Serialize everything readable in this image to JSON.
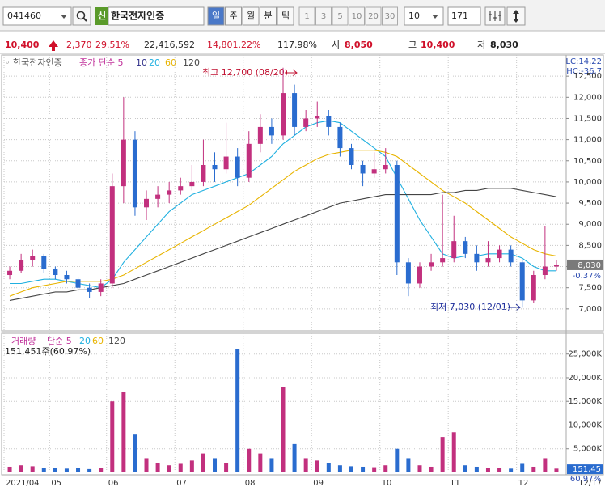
{
  "toolbar": {
    "code": "041460",
    "badge": "신",
    "name": "한국전자인증",
    "periods": [
      "일",
      "주",
      "월",
      "분",
      "틱"
    ],
    "minutes": [
      "1",
      "3",
      "5",
      "10",
      "20",
      "30"
    ],
    "count_select": "10",
    "bars": "171"
  },
  "quote": {
    "price": "10,400",
    "change": "2,370",
    "change_pct": "29.51%",
    "volume": "22,416,592",
    "volume_pct": "14,801.22%",
    "turnover_pct": "117.98%",
    "open_label": "시",
    "open": "8,050",
    "high_label": "고",
    "high": "10,400",
    "low_label": "저",
    "low": "8,030"
  },
  "chart_data": [
    {
      "type": "candlestick",
      "name": "한국전자인증",
      "legend": [
        "종가 단순 5",
        "10",
        "20",
        "60",
        "120"
      ],
      "legend_colors": [
        "#c0309a",
        "#30308a",
        "#20b0e0",
        "#e8b400",
        "#444444"
      ],
      "up_color": "#c2307e",
      "down_color": "#2a6ccf",
      "candles": [
        {
          "open": 7800,
          "high": 8000,
          "low": 7700,
          "close": 7900
        },
        {
          "open": 7900,
          "high": 8300,
          "low": 7850,
          "close": 8150
        },
        {
          "open": 8150,
          "high": 8400,
          "low": 8000,
          "close": 8250
        },
        {
          "open": 8250,
          "high": 8300,
          "low": 7850,
          "close": 7950
        },
        {
          "open": 7950,
          "high": 8000,
          "low": 7700,
          "close": 7800
        },
        {
          "open": 7800,
          "high": 7900,
          "low": 7600,
          "close": 7700
        },
        {
          "open": 7700,
          "high": 7750,
          "low": 7400,
          "close": 7500
        },
        {
          "open": 7500,
          "high": 7600,
          "low": 7250,
          "close": 7400
        },
        {
          "open": 7400,
          "high": 7700,
          "low": 7300,
          "close": 7600
        },
        {
          "open": 7600,
          "high": 10200,
          "low": 7500,
          "close": 9900
        },
        {
          "open": 9900,
          "high": 12000,
          "low": 9500,
          "close": 11000
        },
        {
          "open": 11000,
          "high": 11200,
          "low": 9200,
          "close": 9400
        },
        {
          "open": 9400,
          "high": 9800,
          "low": 9100,
          "close": 9600
        },
        {
          "open": 9600,
          "high": 9900,
          "low": 9400,
          "close": 9700
        },
        {
          "open": 9700,
          "high": 10000,
          "low": 9500,
          "close": 9800
        },
        {
          "open": 9800,
          "high": 10100,
          "low": 9700,
          "close": 9900
        },
        {
          "open": 9900,
          "high": 10400,
          "low": 9800,
          "close": 10000
        },
        {
          "open": 10000,
          "high": 11000,
          "low": 9900,
          "close": 10400
        },
        {
          "open": 10400,
          "high": 10700,
          "low": 10000,
          "close": 10300
        },
        {
          "open": 10300,
          "high": 11400,
          "low": 10200,
          "close": 10600
        },
        {
          "open": 10600,
          "high": 10800,
          "low": 9900,
          "close": 10100
        },
        {
          "open": 10100,
          "high": 11200,
          "low": 10000,
          "close": 10900
        },
        {
          "open": 10900,
          "high": 11600,
          "low": 10700,
          "close": 11300
        },
        {
          "open": 11300,
          "high": 11500,
          "low": 10900,
          "close": 11100
        },
        {
          "open": 11100,
          "high": 12700,
          "low": 11000,
          "close": 12100
        },
        {
          "open": 12100,
          "high": 12300,
          "low": 11100,
          "close": 11300
        },
        {
          "open": 11300,
          "high": 11700,
          "low": 11200,
          "close": 11500
        },
        {
          "open": 11500,
          "high": 11900,
          "low": 11300,
          "close": 11550
        },
        {
          "open": 11550,
          "high": 11700,
          "low": 11100,
          "close": 11300
        },
        {
          "open": 11300,
          "high": 11400,
          "low": 10600,
          "close": 10800
        },
        {
          "open": 10800,
          "high": 10900,
          "low": 10300,
          "close": 10400
        },
        {
          "open": 10400,
          "high": 10500,
          "low": 9900,
          "close": 10200
        },
        {
          "open": 10200,
          "high": 10700,
          "low": 10100,
          "close": 10300
        },
        {
          "open": 10300,
          "high": 10800,
          "low": 10200,
          "close": 10400
        },
        {
          "open": 10400,
          "high": 10500,
          "low": 7800,
          "close": 8100
        },
        {
          "open": 8100,
          "high": 8200,
          "low": 7300,
          "close": 7600
        },
        {
          "open": 7600,
          "high": 8100,
          "low": 7500,
          "close": 8000
        },
        {
          "open": 8000,
          "high": 8300,
          "low": 7900,
          "close": 8100
        },
        {
          "open": 8100,
          "high": 9700,
          "low": 8000,
          "close": 8200
        },
        {
          "open": 8200,
          "high": 9200,
          "low": 8100,
          "close": 8600
        },
        {
          "open": 8600,
          "high": 8700,
          "low": 8200,
          "close": 8300
        },
        {
          "open": 8300,
          "high": 8500,
          "low": 7900,
          "close": 8100
        },
        {
          "open": 8100,
          "high": 8600,
          "low": 8000,
          "close": 8200
        },
        {
          "open": 8200,
          "high": 8500,
          "low": 8100,
          "close": 8400
        },
        {
          "open": 8400,
          "high": 8500,
          "low": 8000,
          "close": 8100
        },
        {
          "open": 8100,
          "high": 8150,
          "low": 7030,
          "close": 7200
        },
        {
          "open": 7200,
          "high": 7900,
          "low": 7150,
          "close": 7800
        },
        {
          "open": 7800,
          "high": 8950,
          "low": 7700,
          "close": 8000
        },
        {
          "open": 8000,
          "high": 8150,
          "low": 7900,
          "close": 8030
        }
      ],
      "ma_lines": [
        {
          "color": "#20b0e0",
          "values": [
            7600,
            7600,
            7650,
            7700,
            7700,
            7650,
            7600,
            7550,
            7500,
            7700,
            8100,
            8400,
            8700,
            9000,
            9300,
            9500,
            9700,
            9800,
            9900,
            10000,
            10100,
            10200,
            10400,
            10600,
            10900,
            11100,
            11300,
            11400,
            11450,
            11400,
            11200,
            11000,
            10800,
            10600,
            10100,
            9600,
            9100,
            8700,
            8300,
            8200,
            8250,
            8250,
            8300,
            8300,
            8300,
            8200,
            8000,
            7900,
            7900
          ]
        },
        {
          "color": "#e8b400",
          "values": [
            7300,
            7400,
            7500,
            7550,
            7600,
            7650,
            7650,
            7650,
            7650,
            7700,
            7800,
            7950,
            8100,
            8250,
            8400,
            8550,
            8700,
            8850,
            9000,
            9150,
            9300,
            9450,
            9650,
            9850,
            10050,
            10250,
            10400,
            10550,
            10650,
            10700,
            10750,
            10750,
            10750,
            10700,
            10600,
            10400,
            10200,
            10000,
            9800,
            9650,
            9500,
            9300,
            9100,
            8900,
            8700,
            8550,
            8400,
            8300,
            8250
          ]
        },
        {
          "color": "#444444",
          "values": [
            7200,
            7250,
            7300,
            7350,
            7400,
            7400,
            7450,
            7450,
            7500,
            7550,
            7600,
            7700,
            7800,
            7900,
            8000,
            8100,
            8200,
            8300,
            8400,
            8500,
            8600,
            8700,
            8800,
            8900,
            9000,
            9100,
            9200,
            9300,
            9400,
            9500,
            9550,
            9600,
            9650,
            9700,
            9700,
            9700,
            9700,
            9700,
            9750,
            9750,
            9800,
            9800,
            9850,
            9850,
            9850,
            9800,
            9750,
            9700,
            9650
          ]
        }
      ],
      "ylim": [
        6500,
        13000
      ],
      "yticks": [
        {
          "value": 7000,
          "label": "7,000"
        },
        {
          "value": 7500,
          "label": "7,500"
        },
        {
          "value": 8000,
          "label": "8,000"
        },
        {
          "value": 8500,
          "label": "8,500"
        },
        {
          "value": 9000,
          "label": "9,000"
        },
        {
          "value": 9500,
          "label": "9,500"
        },
        {
          "value": 10000,
          "label": "10,000"
        },
        {
          "value": 10500,
          "label": "10,500"
        },
        {
          "value": 11000,
          "label": "11,000"
        },
        {
          "value": 11500,
          "label": "11,500"
        },
        {
          "value": 12000,
          "label": "12,000"
        },
        {
          "value": 12500,
          "label": "12,500"
        }
      ],
      "grid": true,
      "high_annotation": "최고 12,700 (08/20)",
      "low_annotation": "최저 7,030 (12/01)",
      "lc_label": "LC:14,22",
      "hc_label": "HC:-36,7",
      "last_price": 8030,
      "last_label": "8,030",
      "last_change": "-0.37%"
    },
    {
      "type": "bar",
      "title": "거래량",
      "legend": [
        "단순 5",
        "20",
        "60",
        "120"
      ],
      "legend_colors": [
        "#c0309a",
        "#20b0e0",
        "#e8b400",
        "#444444"
      ],
      "status": "151,451주(60.97%)",
      "values": [
        1200000,
        1500000,
        1300000,
        1000000,
        900000,
        800000,
        900000,
        700000,
        1000000,
        15000000,
        17000000,
        8000000,
        3000000,
        2000000,
        1500000,
        1800000,
        2500000,
        4000000,
        3000000,
        2000000,
        26000000,
        5000000,
        4000000,
        3000000,
        18000000,
        6000000,
        3000000,
        2500000,
        2000000,
        1500000,
        1300000,
        1200000,
        1100000,
        1500000,
        5000000,
        3000000,
        1500000,
        1200000,
        7500000,
        8500000,
        1500000,
        1200000,
        1000000,
        900000,
        800000,
        1800000,
        1200000,
        3000000,
        800000
      ],
      "ylim": [
        0,
        27000000
      ],
      "yticks": [
        {
          "value": 5000000,
          "label": "5,000K"
        },
        {
          "value": 10000000,
          "label": "10,000K"
        },
        {
          "value": 15000000,
          "label": "15,000K"
        },
        {
          "value": 20000000,
          "label": "20,000K"
        },
        {
          "value": 25000000,
          "label": "25,000K"
        }
      ],
      "grid": true,
      "last_value": 151451,
      "last_label": "151,45",
      "last_pct": "60.97%",
      "xticks": [
        {
          "value": 0,
          "label": "2021/04"
        },
        {
          "value": 4,
          "label": "05"
        },
        {
          "value": 9,
          "label": "06"
        },
        {
          "value": 15,
          "label": "07"
        },
        {
          "value": 21,
          "label": "08"
        },
        {
          "value": 27,
          "label": "09"
        },
        {
          "value": 33,
          "label": "10"
        },
        {
          "value": 39,
          "label": "11"
        },
        {
          "value": 45,
          "label": "12"
        }
      ],
      "end_label": "12/17"
    }
  ]
}
